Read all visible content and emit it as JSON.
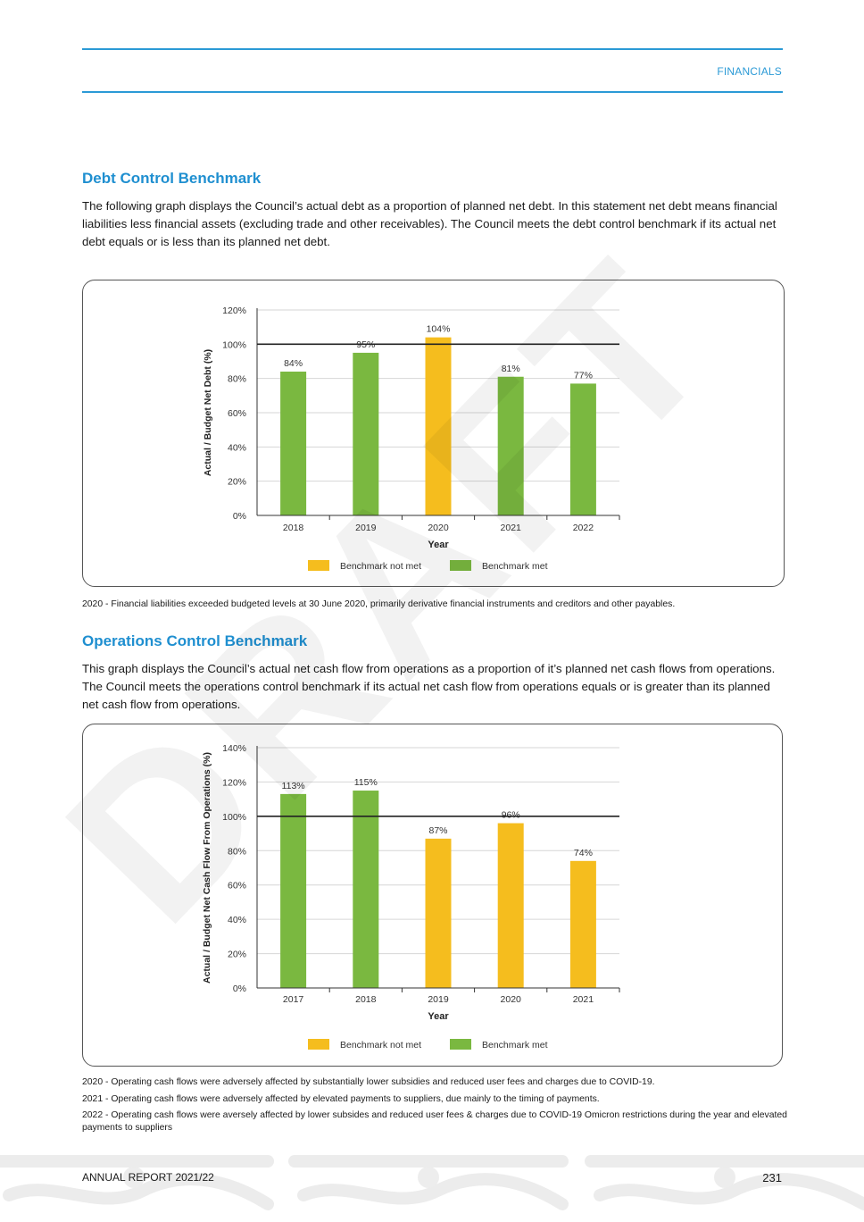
{
  "header": {
    "section": "FINANCIALS"
  },
  "debt": {
    "heading": "Debt Control Benchmark",
    "description": "The following graph displays the Council’s actual debt as a proportion of planned net debt. In this statement net debt means financial liabilities less financial assets (excluding trade and other receivables). The Council meets the debt control benchmark if its actual net debt equals or is less than its planned net debt.",
    "note": "2020 - Financial liabilities exceeded budgeted levels at 30 June 2020, primarily derivative financial instruments and creditors and other payables."
  },
  "operations": {
    "heading": "Operations Control Benchmark",
    "description": "This graph displays the Council’s actual net cash flow from operations as a proportion of it’s planned net cash flows from operations. The Council meets the operations control benchmark if its actual net cash flow from operations equals or is greater than its planned net cash flow from operations.",
    "notes": [
      "2020 - Operating cash flows were adversely affected by substantially lower subsidies and reduced user fees and charges due to COVID-19.",
      "2021 - Operating cash flows were adversely affected by elevated payments to suppliers, due mainly to the timing of payments.",
      "2022  - Operating cash flows were aversely affected by lower subsides and reduced user fees & charges due to COVID-19 Omicron restrictions during the year and elevated payments to suppliers"
    ]
  },
  "watermark": "DRAFT",
  "colors": {
    "accent": "#1f8fd0",
    "met": "#7ab840",
    "not_met": "#f5bd1e",
    "rule": "#2b9ad6"
  },
  "footer": {
    "report": "ANNUAL REPORT 2021/22",
    "page": "231"
  },
  "chart_data": [
    {
      "type": "bar",
      "title": "",
      "xlabel": "Year",
      "ylabel": "Actual / Budget Net Debt (%)",
      "categories": [
        "2018",
        "2019",
        "2020",
        "2021",
        "2022"
      ],
      "values": [
        84,
        95,
        104,
        81,
        77
      ],
      "value_labels": [
        "84%",
        "95%",
        "104%",
        "81%",
        "77%"
      ],
      "status": [
        "met",
        "met",
        "not_met",
        "met",
        "met"
      ],
      "ylim": [
        0,
        120
      ],
      "yticks": [
        "0%",
        "20%",
        "40%",
        "60%",
        "80%",
        "100%",
        "120%"
      ],
      "benchmark_line": 100,
      "legend": [
        "Benchmark not met",
        "Benchmark met"
      ],
      "legend_position": "bottom",
      "grid": true
    },
    {
      "type": "bar",
      "title": "",
      "xlabel": "Year",
      "ylabel": "Actual / Budget Net Cash Flow From Operations (%)",
      "categories": [
        "2017",
        "2018",
        "2019",
        "2020",
        "2021"
      ],
      "values": [
        113,
        115,
        87,
        96,
        74
      ],
      "value_labels": [
        "113%",
        "115%",
        "87%",
        "96%",
        "74%"
      ],
      "status": [
        "met",
        "met",
        "not_met",
        "not_met",
        "not_met"
      ],
      "ylim": [
        0,
        140
      ],
      "yticks": [
        "0%",
        "20%",
        "40%",
        "60%",
        "80%",
        "100%",
        "120%",
        "140%"
      ],
      "benchmark_line": 100,
      "legend": [
        "Benchmark not met",
        "Benchmark met"
      ],
      "legend_position": "bottom",
      "grid": true
    }
  ]
}
